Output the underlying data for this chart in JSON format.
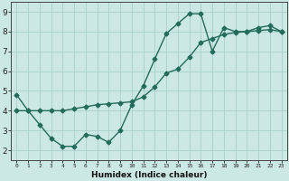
{
  "line1_x": [
    0,
    1,
    2,
    3,
    4,
    5,
    6,
    7,
    8,
    9,
    10,
    11,
    12,
    13,
    14,
    15,
    16,
    17,
    18,
    19,
    20,
    21,
    22,
    23
  ],
  "line1_y": [
    4.8,
    4.0,
    3.3,
    2.6,
    2.2,
    2.2,
    2.8,
    2.7,
    2.4,
    3.0,
    4.3,
    5.25,
    6.6,
    7.9,
    8.4,
    8.9,
    8.9,
    7.0,
    8.2,
    8.0,
    8.0,
    8.2,
    8.3,
    8.0
  ],
  "line2_x": [
    0,
    1,
    2,
    3,
    4,
    5,
    6,
    7,
    8,
    9,
    10,
    11,
    12,
    13,
    14,
    15,
    16,
    17,
    18,
    19,
    20,
    21,
    22,
    23
  ],
  "line2_y": [
    4.0,
    4.0,
    4.0,
    4.0,
    4.0,
    4.1,
    4.2,
    4.3,
    4.35,
    4.4,
    4.45,
    4.7,
    5.2,
    5.9,
    6.1,
    6.7,
    7.45,
    7.65,
    7.85,
    7.95,
    8.0,
    8.05,
    8.1,
    8.0
  ],
  "line_color": "#236b5a",
  "bg_color": "#cce8e4",
  "grid_color": "#aacfcc",
  "xlabel": "Humidex (Indice chaleur)",
  "xlim": [
    -0.5,
    23.5
  ],
  "ylim": [
    1.5,
    9.5
  ],
  "xticks": [
    0,
    1,
    2,
    3,
    4,
    5,
    6,
    7,
    8,
    9,
    10,
    11,
    12,
    13,
    14,
    15,
    16,
    17,
    18,
    19,
    20,
    21,
    22,
    23
  ],
  "yticks": [
    2,
    3,
    4,
    5,
    6,
    7,
    8,
    9
  ],
  "marker_size": 2.5,
  "line_width": 1.0
}
